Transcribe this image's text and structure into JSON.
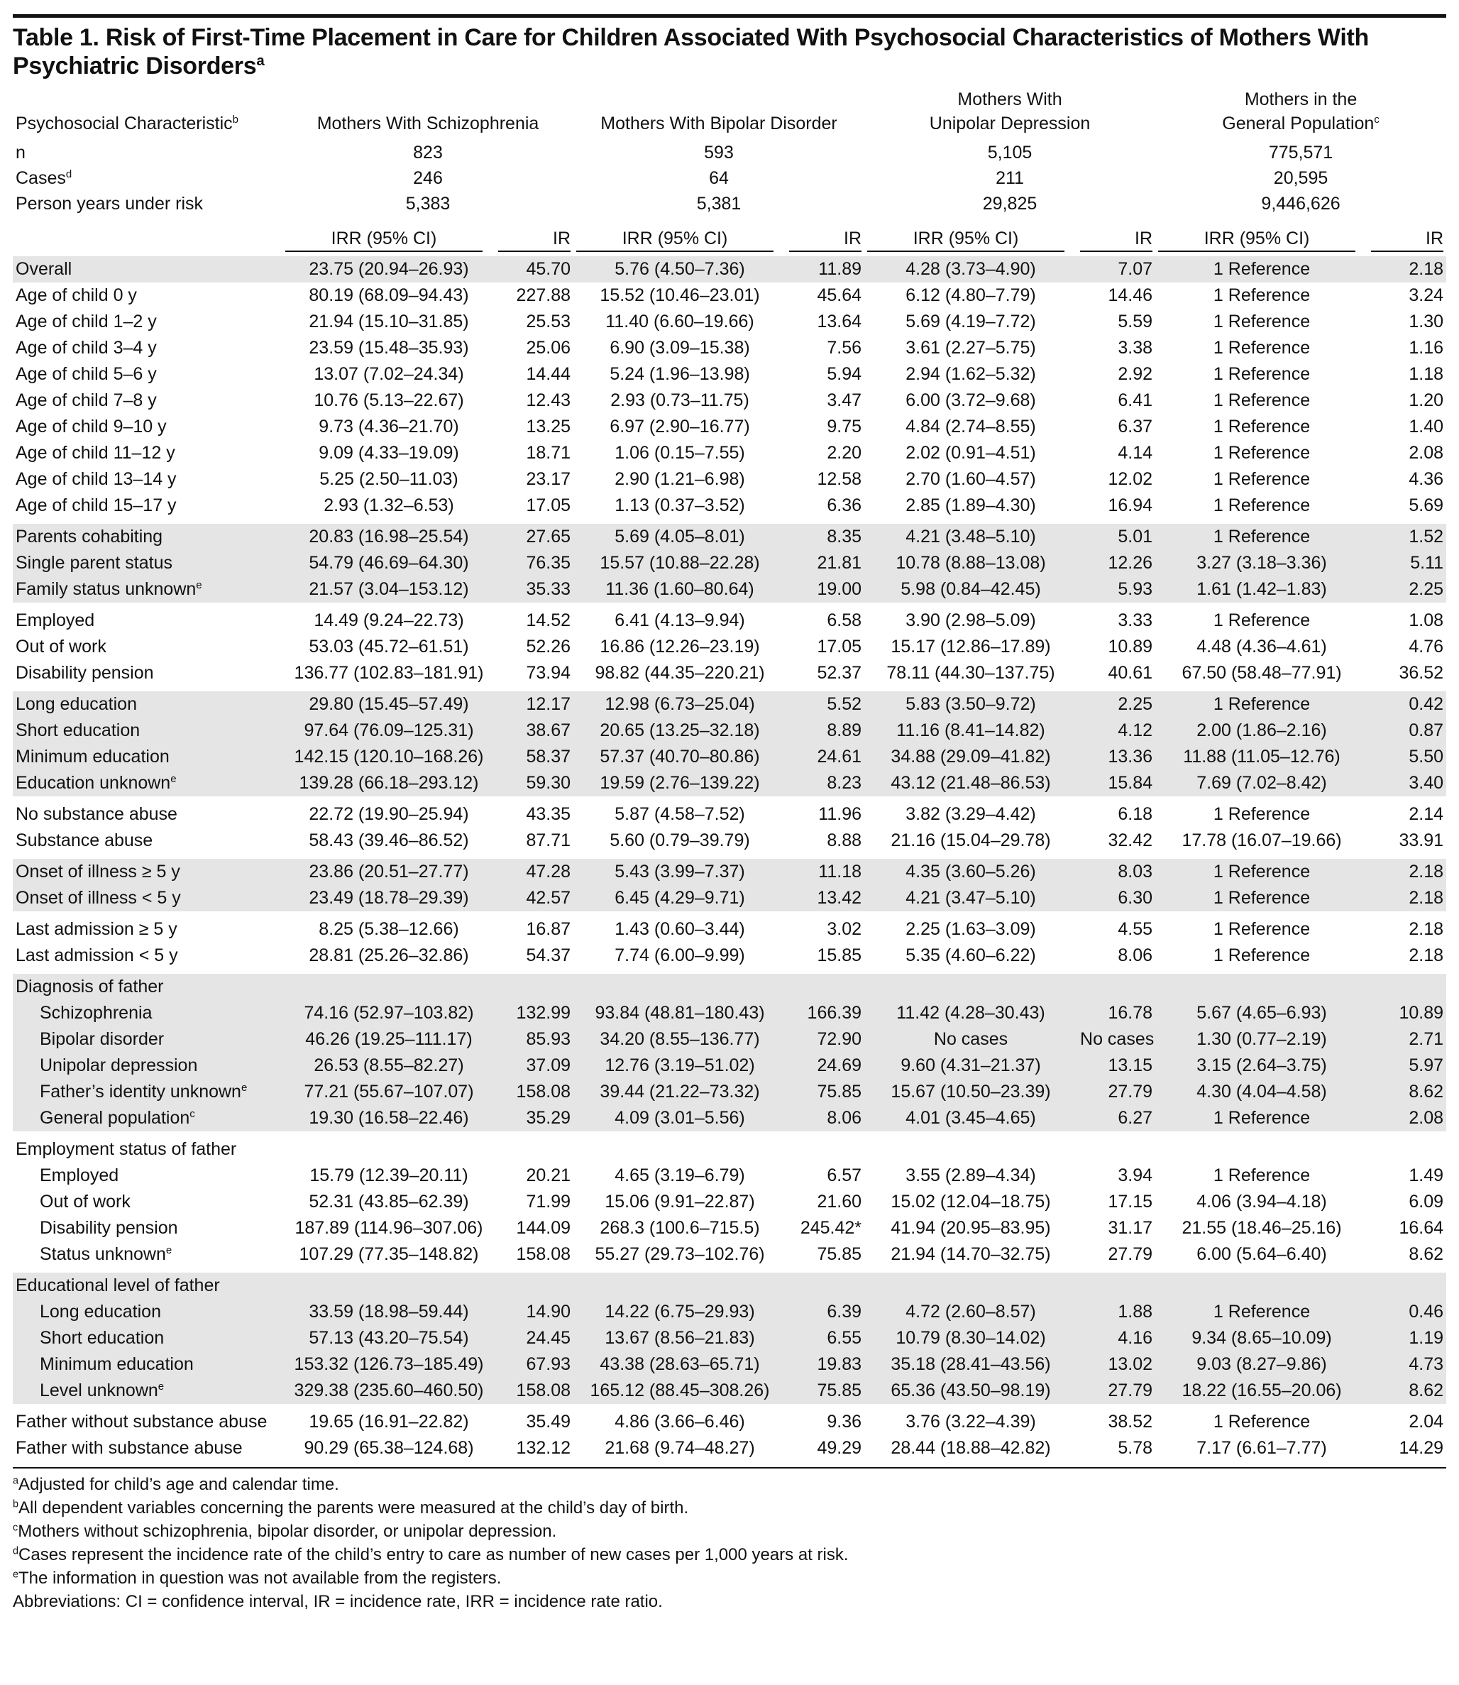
{
  "title": {
    "text": "Table 1. Risk of First-Time Placement in Care for Children Associated With Psychosocial Characteristics of Mothers With Psychiatric Disorders",
    "sup": "a"
  },
  "header": [
    {
      "lines": [
        "Psychosocial Characteristic"
      ],
      "sup": "b"
    },
    {
      "lines": [
        "Mothers With Schizophrenia"
      ]
    },
    {
      "lines": [
        "Mothers With Bipolar Disorder"
      ]
    },
    {
      "lines": [
        "Mothers With",
        "Unipolar Depression"
      ]
    },
    {
      "lines": [
        "Mothers in the",
        "General Population"
      ],
      "sup": "c"
    }
  ],
  "summary": [
    {
      "label": "n",
      "cells": [
        "823",
        "593",
        "5,105",
        "775,571"
      ]
    },
    {
      "label": "Cases",
      "sup": "d",
      "cells": [
        "246",
        "64",
        "211",
        "20,595"
      ]
    },
    {
      "label": "Person years under risk",
      "cells": [
        "5,383",
        "5,381",
        "29,825",
        "9,446,626"
      ]
    }
  ],
  "subheader": [
    "IRR (95% CI)",
    "IR",
    "IRR (95% CI)",
    "IR",
    "IRR (95% CI)",
    "IR",
    "IRR (95% CI)",
    "IR"
  ],
  "groups": [
    {
      "rows": [
        {
          "label": "Overall",
          "cells": [
            "23.75 (20.94–26.93)",
            "45.70",
            "5.76 (4.50–7.36)",
            "11.89",
            "4.28 (3.73–4.90)",
            "7.07",
            "1 Reference",
            "2.18"
          ]
        }
      ]
    },
    {
      "rows": [
        {
          "label": "Age of child 0 y",
          "cells": [
            "80.19 (68.09–94.43)",
            "227.88",
            "15.52 (10.46–23.01)",
            "45.64",
            "6.12 (4.80–7.79)",
            "14.46",
            "1 Reference",
            "3.24"
          ]
        },
        {
          "label": "Age of child 1–2 y",
          "cells": [
            "21.94 (15.10–31.85)",
            "25.53",
            "11.40 (6.60–19.66)",
            "13.64",
            "5.69 (4.19–7.72)",
            "5.59",
            "1 Reference",
            "1.30"
          ]
        },
        {
          "label": "Age of child 3–4 y",
          "cells": [
            "23.59 (15.48–35.93)",
            "25.06",
            "6.90 (3.09–15.38)",
            "7.56",
            "3.61 (2.27–5.75)",
            "3.38",
            "1 Reference",
            "1.16"
          ]
        },
        {
          "label": "Age of child 5–6 y",
          "cells": [
            "13.07 (7.02–24.34)",
            "14.44",
            "5.24 (1.96–13.98)",
            "5.94",
            "2.94 (1.62–5.32)",
            "2.92",
            "1 Reference",
            "1.18"
          ]
        },
        {
          "label": "Age of child 7–8 y",
          "cells": [
            "10.76 (5.13–22.67)",
            "12.43",
            "2.93 (0.73–11.75)",
            "3.47",
            "6.00 (3.72–9.68)",
            "6.41",
            "1 Reference",
            "1.20"
          ]
        },
        {
          "label": "Age of child 9–10 y",
          "cells": [
            "9.73 (4.36–21.70)",
            "13.25",
            "6.97 (2.90–16.77)",
            "9.75",
            "4.84 (2.74–8.55)",
            "6.37",
            "1 Reference",
            "1.40"
          ]
        },
        {
          "label": "Age of child 11–12 y",
          "cells": [
            "9.09 (4.33–19.09)",
            "18.71",
            "1.06 (0.15–7.55)",
            "2.20",
            "2.02 (0.91–4.51)",
            "4.14",
            "1 Reference",
            "2.08"
          ]
        },
        {
          "label": "Age of child 13–14 y",
          "cells": [
            "5.25 (2.50–11.03)",
            "23.17",
            "2.90 (1.21–6.98)",
            "12.58",
            "2.70 (1.60–4.57)",
            "12.02",
            "1 Reference",
            "4.36"
          ]
        },
        {
          "label": "Age of child 15–17 y",
          "cells": [
            "2.93 (1.32–6.53)",
            "17.05",
            "1.13 (0.37–3.52)",
            "6.36",
            "2.85 (1.89–4.30)",
            "16.94",
            "1 Reference",
            "5.69"
          ]
        }
      ]
    },
    {
      "rows": [
        {
          "label": "Parents cohabiting",
          "cells": [
            "20.83 (16.98–25.54)",
            "27.65",
            "5.69 (4.05–8.01)",
            "8.35",
            "4.21 (3.48–5.10)",
            "5.01",
            "1 Reference",
            "1.52"
          ]
        },
        {
          "label": "Single parent status",
          "cells": [
            "54.79 (46.69–64.30)",
            "76.35",
            "15.57 (10.88–22.28)",
            "21.81",
            "10.78 (8.88–13.08)",
            "12.26",
            "3.27 (3.18–3.36)",
            "5.11"
          ]
        },
        {
          "label": "Family status unknown",
          "sup": "e",
          "cells": [
            "21.57 (3.04–153.12)",
            "35.33",
            "11.36 (1.60–80.64)",
            "19.00",
            "5.98 (0.84–42.45)",
            "5.93",
            "1.61 (1.42–1.83)",
            "2.25"
          ]
        }
      ]
    },
    {
      "rows": [
        {
          "label": "Employed",
          "cells": [
            "14.49 (9.24–22.73)",
            "14.52",
            "6.41 (4.13–9.94)",
            "6.58",
            "3.90 (2.98–5.09)",
            "3.33",
            "1 Reference",
            "1.08"
          ]
        },
        {
          "label": "Out of work",
          "cells": [
            "53.03 (45.72–61.51)",
            "52.26",
            "16.86 (12.26–23.19)",
            "17.05",
            "15.17 (12.86–17.89)",
            "10.89",
            "4.48 (4.36–4.61)",
            "4.76"
          ]
        },
        {
          "label": "Disability pension",
          "cells": [
            "136.77 (102.83–181.91)",
            "73.94",
            "98.82 (44.35–220.21)",
            "52.37",
            "78.11 (44.30–137.75)",
            "40.61",
            "67.50 (58.48–77.91)",
            "36.52"
          ]
        }
      ]
    },
    {
      "rows": [
        {
          "label": "Long education",
          "cells": [
            "29.80 (15.45–57.49)",
            "12.17",
            "12.98 (6.73–25.04)",
            "5.52",
            "5.83 (3.50–9.72)",
            "2.25",
            "1 Reference",
            "0.42"
          ]
        },
        {
          "label": "Short education",
          "cells": [
            "97.64 (76.09–125.31)",
            "38.67",
            "20.65 (13.25–32.18)",
            "8.89",
            "11.16 (8.41–14.82)",
            "4.12",
            "2.00 (1.86–2.16)",
            "0.87"
          ]
        },
        {
          "label": "Minimum education",
          "cells": [
            "142.15 (120.10–168.26)",
            "58.37",
            "57.37 (40.70–80.86)",
            "24.61",
            "34.88 (29.09–41.82)",
            "13.36",
            "11.88 (11.05–12.76)",
            "5.50"
          ]
        },
        {
          "label": "Education unknown",
          "sup": "e",
          "cells": [
            "139.28 (66.18–293.12)",
            "59.30",
            "19.59 (2.76–139.22)",
            "8.23",
            "43.12 (21.48–86.53)",
            "15.84",
            "7.69 (7.02–8.42)",
            "3.40"
          ]
        }
      ]
    },
    {
      "rows": [
        {
          "label": "No substance abuse",
          "cells": [
            "22.72 (19.90–25.94)",
            "43.35",
            "5.87 (4.58–7.52)",
            "11.96",
            "3.82 (3.29–4.42)",
            "6.18",
            "1 Reference",
            "2.14"
          ]
        },
        {
          "label": "Substance abuse",
          "cells": [
            "58.43 (39.46–86.52)",
            "87.71",
            "5.60 (0.79–39.79)",
            "8.88",
            "21.16 (15.04–29.78)",
            "32.42",
            "17.78 (16.07–19.66)",
            "33.91"
          ]
        }
      ]
    },
    {
      "rows": [
        {
          "label": "Onset of illness ≥ 5 y",
          "cells": [
            "23.86 (20.51–27.77)",
            "47.28",
            "5.43 (3.99–7.37)",
            "11.18",
            "4.35 (3.60–5.26)",
            "8.03",
            "1 Reference",
            "2.18"
          ]
        },
        {
          "label": "Onset of illness < 5 y",
          "cells": [
            "23.49 (18.78–29.39)",
            "42.57",
            "6.45 (4.29–9.71)",
            "13.42",
            "4.21 (3.47–5.10)",
            "6.30",
            "1 Reference",
            "2.18"
          ]
        }
      ]
    },
    {
      "rows": [
        {
          "label": "Last admission ≥ 5 y",
          "cells": [
            "8.25 (5.38–12.66)",
            "16.87",
            "1.43 (0.60–3.44)",
            "3.02",
            "2.25 (1.63–3.09)",
            "4.55",
            "1 Reference",
            "2.18"
          ]
        },
        {
          "label": "Last admission < 5 y",
          "cells": [
            "28.81 (25.26–32.86)",
            "54.37",
            "7.74 (6.00–9.99)",
            "15.85",
            "5.35 (4.60–6.22)",
            "8.06",
            "1 Reference",
            "2.18"
          ]
        }
      ]
    },
    {
      "heading": "Diagnosis of father",
      "rows": [
        {
          "label": "Schizophrenia",
          "cells": [
            "74.16 (52.97–103.82)",
            "132.99",
            "93.84 (48.81–180.43)",
            "166.39",
            "11.42 (4.28–30.43)",
            "16.78",
            "5.67 (4.65–6.93)",
            "10.89"
          ]
        },
        {
          "label": "Bipolar disorder",
          "cells": [
            "46.26 (19.25–111.17)",
            "85.93",
            "34.20 (8.55–136.77)",
            "72.90",
            "No cases",
            "No cases",
            "1.30 (0.77–2.19)",
            "2.71"
          ]
        },
        {
          "label": "Unipolar depression",
          "cells": [
            "26.53 (8.55–82.27)",
            "37.09",
            "12.76 (3.19–51.02)",
            "24.69",
            "9.60 (4.31–21.37)",
            "13.15",
            "3.15 (2.64–3.75)",
            "5.97"
          ]
        },
        {
          "label": "Father’s identity unknown",
          "sup": "e",
          "cells": [
            "77.21 (55.67–107.07)",
            "158.08",
            "39.44 (21.22–73.32)",
            "75.85",
            "15.67 (10.50–23.39)",
            "27.79",
            "4.30 (4.04–4.58)",
            "8.62"
          ]
        },
        {
          "label": "General population",
          "sup": "c",
          "cells": [
            "19.30 (16.58–22.46)",
            "35.29",
            "4.09 (3.01–5.56)",
            "8.06",
            "4.01 (3.45–4.65)",
            "6.27",
            "1 Reference",
            "2.08"
          ]
        }
      ]
    },
    {
      "heading": "Employment status of father",
      "rows": [
        {
          "label": "Employed",
          "cells": [
            "15.79 (12.39–20.11)",
            "20.21",
            "4.65 (3.19–6.79)",
            "6.57",
            "3.55 (2.89–4.34)",
            "3.94",
            "1 Reference",
            "1.49"
          ]
        },
        {
          "label": "Out of work",
          "cells": [
            "52.31 (43.85–62.39)",
            "71.99",
            "15.06 (9.91–22.87)",
            "21.60",
            "15.02 (12.04–18.75)",
            "17.15",
            "4.06 (3.94–4.18)",
            "6.09"
          ]
        },
        {
          "label": "Disability pension",
          "cells": [
            "187.89 (114.96–307.06)",
            "144.09",
            "268.3 (100.6–715.5)",
            "245.42*",
            "41.94 (20.95–83.95)",
            "31.17",
            "21.55 (18.46–25.16)",
            "16.64"
          ]
        },
        {
          "label": "Status unknown",
          "sup": "e",
          "cells": [
            "107.29 (77.35–148.82)",
            "158.08",
            "55.27 (29.73–102.76)",
            "75.85",
            "21.94 (14.70–32.75)",
            "27.79",
            "6.00 (5.64–6.40)",
            "8.62"
          ]
        }
      ]
    },
    {
      "heading": "Educational level of father",
      "rows": [
        {
          "label": "Long education",
          "cells": [
            "33.59 (18.98–59.44)",
            "14.90",
            "14.22 (6.75–29.93)",
            "6.39",
            "4.72 (2.60–8.57)",
            "1.88",
            "1 Reference",
            "0.46"
          ]
        },
        {
          "label": "Short education",
          "cells": [
            "57.13 (43.20–75.54)",
            "24.45",
            "13.67 (8.56–21.83)",
            "6.55",
            "10.79 (8.30–14.02)",
            "4.16",
            "9.34 (8.65–10.09)",
            "1.19"
          ]
        },
        {
          "label": "Minimum education",
          "cells": [
            "153.32 (126.73–185.49)",
            "67.93",
            "43.38 (28.63–65.71)",
            "19.83",
            "35.18 (28.41–43.56)",
            "13.02",
            "9.03 (8.27–9.86)",
            "4.73"
          ]
        },
        {
          "label": "Level unknown",
          "sup": "e",
          "cells": [
            "329.38 (235.60–460.50)",
            "158.08",
            "165.12 (88.45–308.26)",
            "75.85",
            "65.36 (43.50–98.19)",
            "27.79",
            "18.22 (16.55–20.06)",
            "8.62"
          ]
        }
      ]
    },
    {
      "rows": [
        {
          "label": "Father without substance abuse",
          "cells": [
            "19.65 (16.91–22.82)",
            "35.49",
            "4.86 (3.66–6.46)",
            "9.36",
            "3.76 (3.22–4.39)",
            "38.52",
            "1 Reference",
            "2.04"
          ]
        },
        {
          "label": "Father with substance abuse",
          "cells": [
            "90.29 (65.38–124.68)",
            "132.12",
            "21.68 (9.74–48.27)",
            "49.29",
            "28.44 (18.88–42.82)",
            "5.78",
            "7.17 (6.61–7.77)",
            "14.29"
          ]
        }
      ]
    }
  ],
  "footnotes": [
    {
      "sup": "a",
      "text": "Adjusted for child’s age and calendar time."
    },
    {
      "sup": "b",
      "text": "All dependent variables concerning the parents were measured at the child’s day of birth."
    },
    {
      "sup": "c",
      "text": "Mothers without schizophrenia, bipolar disorder, or unipolar depression."
    },
    {
      "sup": "d",
      "text": "Cases represent the incidence rate of the child’s entry to care as number of new cases per 1,000 years at risk."
    },
    {
      "sup": "e",
      "text": "The information in question was not available from the registers."
    }
  ],
  "abbreviations": "Abbreviations: CI = confidence interval, IR = incidence rate, IRR = incidence rate ratio."
}
